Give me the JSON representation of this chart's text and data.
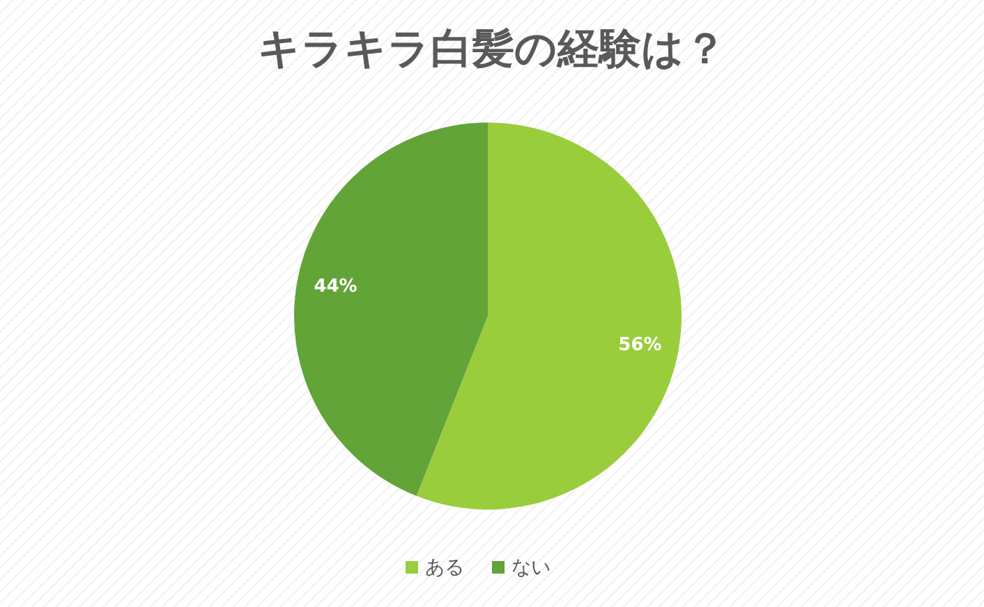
{
  "chart_data": {
    "type": "pie",
    "title": "キラキラ白髪の経験は？",
    "categories": [
      "ある",
      "ない"
    ],
    "values": [
      56,
      44
    ],
    "colors": [
      "#9acd3c",
      "#62a438"
    ],
    "value_labels": [
      "56%",
      "44%"
    ],
    "legend": "bottom"
  }
}
